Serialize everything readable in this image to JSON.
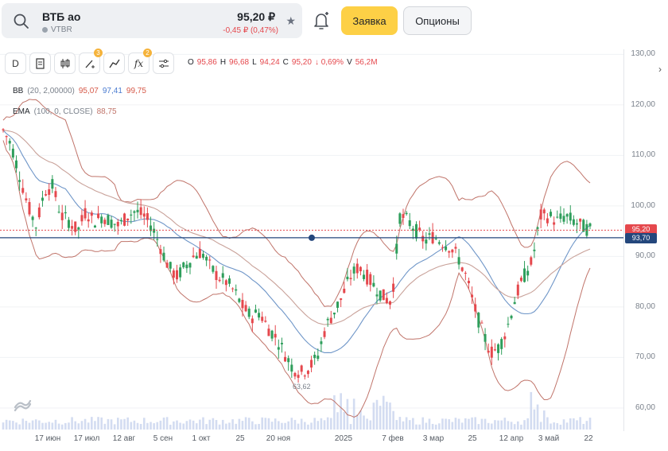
{
  "header": {
    "ticker_name": "ВТБ ао",
    "ticker_code": "VTBR",
    "price": "95,20 ₽",
    "change": "-0,45 ₽ (0,47%)",
    "order_button": "Заявка",
    "options_button": "Опционы"
  },
  "toolbar": {
    "period": "D",
    "drawing_badge": "3",
    "indicators_badge": "2",
    "indicators_label": "fx",
    "ohlc": {
      "o_label": "O",
      "o": "95,86",
      "h_label": "H",
      "h": "96,68",
      "l_label": "L",
      "l": "94,24",
      "c_label": "C",
      "c": "95,20",
      "chg": "↓ 0,69%",
      "v_label": "V",
      "v": "56,2M"
    }
  },
  "indicators": {
    "bb": {
      "name": "BB",
      "params": "(20, 2,00000)",
      "v1": "95,07",
      "v2": "97,41",
      "v3": "99,75"
    },
    "ema": {
      "name": "EMA",
      "params": "(100, 0, CLOSE)",
      "v1": "88,75"
    }
  },
  "colors": {
    "up": "#2e9e5b",
    "down": "#e5484d",
    "bb": "#c0746a",
    "ema": "#6f96c8",
    "ema_long": "#c9a29a",
    "hline": "#24477c",
    "price_tag": "#e5484d"
  },
  "chart_data": {
    "type": "candlestick",
    "y_axis": {
      "ticks": [
        "130,00",
        "120,00",
        "110,00",
        "100,00",
        "90,00",
        "80,00",
        "70,00",
        "60,00"
      ],
      "range": [
        57,
        131
      ]
    },
    "x_axis": {
      "ticks": [
        "17 июн",
        "17 июл",
        "12 авг",
        "5 сен",
        "1 окт",
        "25",
        "20 ноя",
        "2025",
        "7 фев",
        "3 мар",
        "25",
        "12 апр",
        "3 май",
        "22"
      ]
    },
    "current_price_label": "95,20",
    "hline_label": "93,70",
    "horizontal_line": 93.7,
    "low_marker": "63,62",
    "close_path": [
      115,
      112,
      106,
      100,
      96,
      103,
      104,
      98,
      97,
      95,
      99,
      97,
      98,
      97,
      96,
      98,
      99,
      98,
      96,
      92,
      88,
      86,
      88,
      90,
      91,
      88,
      86,
      85,
      83,
      80,
      78,
      79,
      76,
      74,
      71,
      68,
      67,
      68,
      70,
      76,
      79,
      82,
      86,
      88,
      86,
      84,
      82,
      81,
      98,
      97,
      95,
      93,
      94,
      93,
      92,
      90,
      86,
      80,
      75,
      71,
      72,
      76,
      82,
      86,
      89,
      98,
      98,
      97,
      98,
      97,
      96,
      95.2
    ]
  },
  "status": {
    "price_tag": "95,20"
  }
}
